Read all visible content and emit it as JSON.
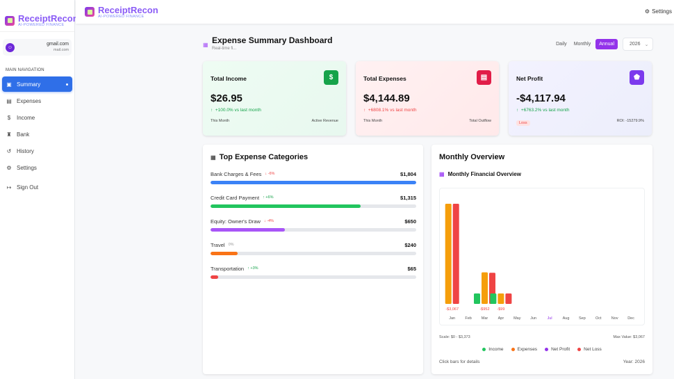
{
  "app": {
    "name": "ReceiptRecon",
    "tagline": "AI-POWERED FINANCE"
  },
  "user": {
    "email": "gmail.com",
    "email_sub": "mail.com"
  },
  "sidebar": {
    "section_label": "MAIN NAVIGATION",
    "items": [
      {
        "label": "Summary",
        "icon": "summary-icon",
        "active": true
      },
      {
        "label": "Expenses",
        "icon": "receipt-icon"
      },
      {
        "label": "Income",
        "icon": "dollar-icon"
      },
      {
        "label": "Bank",
        "icon": "bank-icon"
      },
      {
        "label": "History",
        "icon": "history-icon"
      },
      {
        "label": "Settings",
        "icon": "gear-icon"
      },
      {
        "label": "Sign Out",
        "icon": "sign-out-icon"
      }
    ]
  },
  "topbar": {
    "settings_label": "Settings"
  },
  "dashboard": {
    "title": "Expense Summary Dashboard",
    "subtitle": "Real-time fi...",
    "periods": [
      "Daily",
      "Monthly",
      "Annual"
    ],
    "active_period": "Annual",
    "year": "2026"
  },
  "cards": [
    {
      "label": "Total Income",
      "value": "$26.95",
      "change": "+100.0% vs last month",
      "footer_left": "This Month",
      "footer_right": "Active Revenue",
      "color": "#16a34a"
    },
    {
      "label": "Total Expenses",
      "value": "$4,144.89",
      "change": "+6808.1% vs last month",
      "footer_left": "This Month",
      "footer_right": "Total Outflow",
      "color": "#e11d48"
    },
    {
      "label": "Net Profit",
      "value": "-$4,117.94",
      "change": "+6763.2% vs last month",
      "footer_left": "Loss",
      "footer_right": "ROI: -15279.9%",
      "color": "#7c3aed"
    }
  ],
  "categories": {
    "title": "Top Expense Categories",
    "items": [
      {
        "name": "Bank Charges & Fees",
        "trend": "↓ -6%",
        "trend_dir": "down",
        "amount": "$1,804",
        "value": 1804,
        "color": "#3b82f6"
      },
      {
        "name": "Credit Card Payment",
        "trend": "↑ +6%",
        "trend_dir": "up",
        "amount": "$1,315",
        "value": 1315,
        "color": "#22c55e"
      },
      {
        "name": "Equity: Owner's Draw",
        "trend": "↓ -4%",
        "trend_dir": "down",
        "amount": "$650",
        "value": 650,
        "color": "#a855f7"
      },
      {
        "name": "Travel",
        "trend": "0%",
        "trend_dir": "flat",
        "amount": "$240",
        "value": 240,
        "color": "#f97316"
      },
      {
        "name": "Transportation",
        "trend": "↑ +3%",
        "trend_dir": "up",
        "amount": "$65",
        "value": 65,
        "color": "#ef4444"
      }
    ]
  },
  "overview": {
    "title": "Monthly Overview",
    "subtitle": "Monthly Financial Overview",
    "scale": "Scale: $0 - $3,373",
    "max_value": "Max Value: $3,067",
    "hint": "Click bars for details",
    "year_label": "Year: 2026"
  },
  "chart_data": {
    "type": "bar",
    "categories": [
      "Jan",
      "Feb",
      "Mar",
      "Apr",
      "May",
      "Jun",
      "Jul",
      "Aug",
      "Sep",
      "Oct",
      "Nov",
      "Dec"
    ],
    "highlight_category": "Jul",
    "ylim": [
      0,
      3373
    ],
    "series": [
      {
        "name": "Income",
        "color": "#22c55e",
        "values": [
          0,
          0,
          13,
          14,
          0,
          0,
          0,
          0,
          0,
          0,
          0,
          0
        ]
      },
      {
        "name": "Expenses",
        "color": "#f59e0b",
        "values": [
          3067,
          0,
          965,
          113,
          0,
          0,
          0,
          0,
          0,
          0,
          0,
          0
        ]
      },
      {
        "name": "Net Profit",
        "color": "#9333ea",
        "values": [
          0,
          0,
          0,
          0,
          0,
          0,
          0,
          0,
          0,
          0,
          0,
          0
        ]
      },
      {
        "name": "Net Loss",
        "color": "#ef4444",
        "values": [
          3067,
          0,
          952,
          99,
          0,
          0,
          0,
          0,
          0,
          0,
          0,
          0
        ]
      }
    ],
    "data_labels": {
      "Jan": "-$3,067",
      "Mar": "-$952",
      "Apr": "-$99"
    },
    "legend_colors": {
      "Income": "#22c55e",
      "Expenses": "#f97316",
      "Net Profit": "#9333ea",
      "Net Loss": "#ef4444"
    },
    "legend_placement": "bottom",
    "grid": false
  }
}
